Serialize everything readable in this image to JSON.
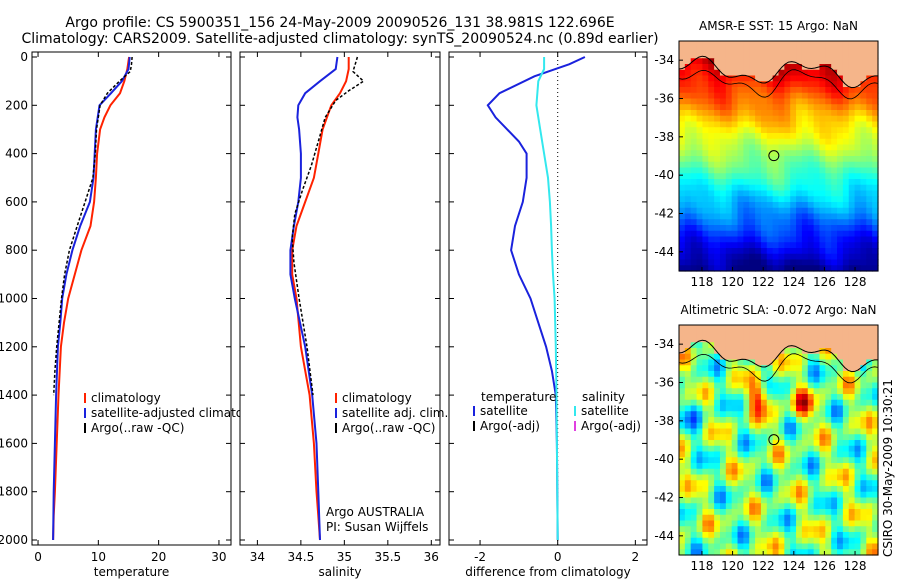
{
  "header": {
    "line1": "Argo profile: CS 5900351_156 24-May-2009 20090526_131 38.981S 122.696E",
    "line2": "Climatology: CARS2009. Satellite-adjusted climatology: synTS_20090524.nc (0.89d earlier)"
  },
  "colors": {
    "climatology": "#ff2200",
    "satellite": "#1a22dd",
    "argo": "#000000",
    "satellite_salinity": "#33e8ee",
    "argo_salinity_adj": "#e040e0",
    "land": "#f5b58a"
  },
  "chart_data": [
    {
      "type": "line",
      "panel": "temperature",
      "xlabel": "temperature",
      "ylabel": "",
      "xlim": [
        -1,
        32
      ],
      "ylim": [
        2000,
        0
      ],
      "xticks": [
        0,
        10,
        20,
        30
      ],
      "yticks": [
        0,
        200,
        400,
        600,
        800,
        1000,
        1200,
        1400,
        1600,
        1800,
        2000
      ],
      "legend": [
        "climatology",
        "satellite-adjusted climatology",
        "Argo(..raw -QC)"
      ],
      "series": [
        {
          "name": "climatology",
          "x": [
            15.1,
            14.8,
            14.3,
            13.6,
            12.0,
            11.0,
            10.3,
            9.8,
            9.6,
            9.3,
            8.7,
            7.2,
            6.1,
            5.0,
            4.3,
            3.8,
            3.4,
            3.1,
            2.8,
            2.6,
            2.5
          ],
          "y": [
            0,
            50,
            100,
            150,
            200,
            250,
            300,
            400,
            500,
            600,
            700,
            800,
            900,
            1000,
            1100,
            1200,
            1400,
            1600,
            1800,
            1900,
            2000
          ]
        },
        {
          "name": "satellite-adjusted climatology",
          "x": [
            15.2,
            15.0,
            13.9,
            12.1,
            10.2,
            9.6,
            9.4,
            9.2,
            8.6,
            7.0,
            5.7,
            4.7,
            4.0,
            3.7,
            3.3,
            3.0,
            2.8,
            2.6,
            2.5
          ],
          "y": [
            0,
            50,
            100,
            150,
            200,
            300,
            400,
            500,
            600,
            700,
            800,
            900,
            1000,
            1100,
            1200,
            1400,
            1600,
            1800,
            2000
          ]
        },
        {
          "name": "Argo(..raw -QC)",
          "x": [
            15.6,
            15.5,
            15.3,
            13.5,
            11.5,
            10.3,
            9.7,
            9.5,
            9.1,
            7.8,
            6.5,
            5.2,
            4.4,
            3.9,
            3.5,
            3.1,
            2.8,
            2.6
          ],
          "y": [
            0,
            30,
            60,
            100,
            150,
            200,
            300,
            400,
            500,
            600,
            700,
            800,
            900,
            1000,
            1100,
            1200,
            1300,
            1400
          ]
        }
      ]
    },
    {
      "type": "line",
      "panel": "salinity",
      "xlabel": "salinity",
      "ylabel": "",
      "xlim": [
        33.8,
        36.1
      ],
      "ylim": [
        2000,
        0
      ],
      "xticks": [
        34,
        34.5,
        35,
        35.5,
        36
      ],
      "legend": [
        "climatology",
        "satellite adj. clim.",
        "Argo(..raw -QC)"
      ],
      "annotations": [
        "Argo AUSTRALIA",
        "PI: Susan Wijffels"
      ],
      "series": [
        {
          "name": "climatology",
          "x": [
            35.05,
            35.05,
            35.02,
            34.95,
            34.85,
            34.75,
            34.7,
            34.65,
            34.55,
            34.45,
            34.4,
            34.4,
            34.45,
            34.5,
            34.6,
            34.65,
            34.68,
            34.7,
            34.72
          ],
          "y": [
            0,
            50,
            100,
            150,
            200,
            300,
            400,
            500,
            600,
            700,
            800,
            900,
            1000,
            1200,
            1400,
            1600,
            1800,
            1900,
            2000
          ]
        },
        {
          "name": "satellite adj. clim.",
          "x": [
            34.92,
            34.9,
            34.72,
            34.55,
            34.47,
            34.46,
            34.48,
            34.5,
            34.5,
            34.47,
            34.42,
            34.38,
            34.38,
            34.43,
            34.55,
            34.63,
            34.68,
            34.7,
            34.72
          ],
          "y": [
            0,
            50,
            100,
            150,
            200,
            250,
            300,
            400,
            500,
            600,
            700,
            800,
            900,
            1000,
            1200,
            1400,
            1600,
            1800,
            2000
          ]
        },
        {
          "name": "Argo(..raw -QC)",
          "x": [
            35.15,
            35.1,
            35.22,
            35.05,
            34.9,
            34.78,
            34.7,
            34.62,
            34.52,
            34.43,
            34.4,
            34.42,
            34.48,
            34.57,
            34.64
          ],
          "y": [
            0,
            60,
            100,
            140,
            180,
            250,
            350,
            450,
            550,
            650,
            750,
            850,
            1000,
            1200,
            1400
          ]
        }
      ]
    },
    {
      "type": "line",
      "panel": "difference",
      "xlabel": "difference from climatology",
      "ylabel": "",
      "xlim": [
        -2.8,
        2.3
      ],
      "ylim": [
        2000,
        0
      ],
      "xticks": [
        -2,
        0,
        2
      ],
      "legend_titles": [
        "temperature",
        "salinity"
      ],
      "legend": [
        "satellite",
        "Argo(-adj)",
        "satellite",
        "Argo(-adj)"
      ],
      "series": [
        {
          "name": "temperature satellite",
          "x": [
            0.7,
            0.3,
            -0.6,
            -1.5,
            -1.8,
            -1.6,
            -1.3,
            -1.0,
            -0.8,
            -0.8,
            -0.9,
            -1.1,
            -1.2,
            -1.0,
            -0.7,
            -0.5,
            -0.3,
            -0.15,
            -0.05,
            -0.02,
            0.0
          ],
          "y": [
            0,
            30,
            80,
            150,
            200,
            250,
            300,
            350,
            400,
            500,
            600,
            700,
            800,
            900,
            1000,
            1100,
            1200,
            1300,
            1400,
            1600,
            2000
          ]
        },
        {
          "name": "salinity satellite",
          "x": [
            -0.35,
            -0.35,
            -0.5,
            -0.55,
            -0.45,
            -0.35,
            -0.25,
            -0.2,
            -0.17,
            -0.15,
            -0.12,
            -0.08,
            -0.05,
            -0.03,
            -0.02,
            0.0
          ],
          "y": [
            0,
            50,
            100,
            200,
            300,
            400,
            500,
            600,
            700,
            800,
            900,
            1000,
            1200,
            1400,
            1600,
            2000
          ]
        }
      ]
    }
  ],
  "maps": [
    {
      "title": "AMSR-E SST: 15 Argo: NaN",
      "xticks": [
        "118",
        "120",
        "122",
        "124",
        "126",
        "128"
      ],
      "yticks": [
        "-34",
        "-36",
        "-38",
        "-40",
        "-42",
        "-44"
      ],
      "lon_range": [
        116.5,
        129.5
      ],
      "lat_range": [
        -45,
        -33
      ]
    },
    {
      "title": "Altimetric SLA: -0.072 Argo: NaN",
      "xticks": [
        "118",
        "120",
        "122",
        "124",
        "126",
        "128"
      ],
      "yticks": [
        "-34",
        "-36",
        "-38",
        "-40",
        "-42",
        "-44"
      ],
      "lon_range": [
        116.5,
        129.5
      ],
      "lat_range": [
        -45,
        -33
      ]
    }
  ],
  "argo_position": {
    "lon": 122.696,
    "lat": -38.981
  },
  "footer": "CSIRO 30-May-2009 10:30:21"
}
